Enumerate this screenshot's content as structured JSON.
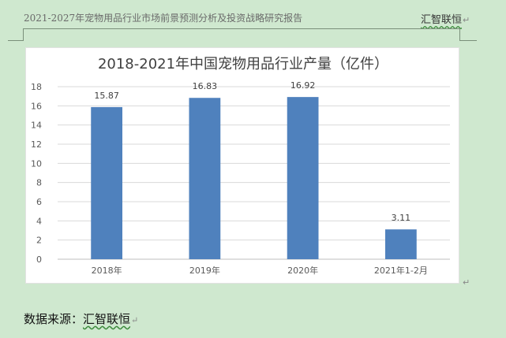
{
  "header": {
    "left_text": "2021-2027年宠物用品行业市场前景预测分析及投资战略研究报告",
    "right_text": "汇智联恒",
    "paragraph_mark": "↵"
  },
  "chart_data": {
    "type": "bar",
    "title": "2018-2021年中国宠物用品行业产量（亿件）",
    "categories": [
      "2018年",
      "2019年",
      "2020年",
      "2021年1-2月"
    ],
    "values": [
      15.87,
      16.83,
      16.92,
      3.11
    ],
    "data_labels": [
      "15.87",
      "16.83",
      "16.92",
      "3.11"
    ],
    "ylim": [
      0,
      18
    ],
    "yticks": [
      0,
      2,
      4,
      6,
      8,
      10,
      12,
      14,
      16,
      18
    ],
    "grid": true,
    "bar_color": "#4f81bd",
    "legend": "none"
  },
  "after_chart_mark": "↵",
  "source": {
    "label": "数据来源：",
    "value": "汇智联恒",
    "paragraph_mark": "↵"
  }
}
